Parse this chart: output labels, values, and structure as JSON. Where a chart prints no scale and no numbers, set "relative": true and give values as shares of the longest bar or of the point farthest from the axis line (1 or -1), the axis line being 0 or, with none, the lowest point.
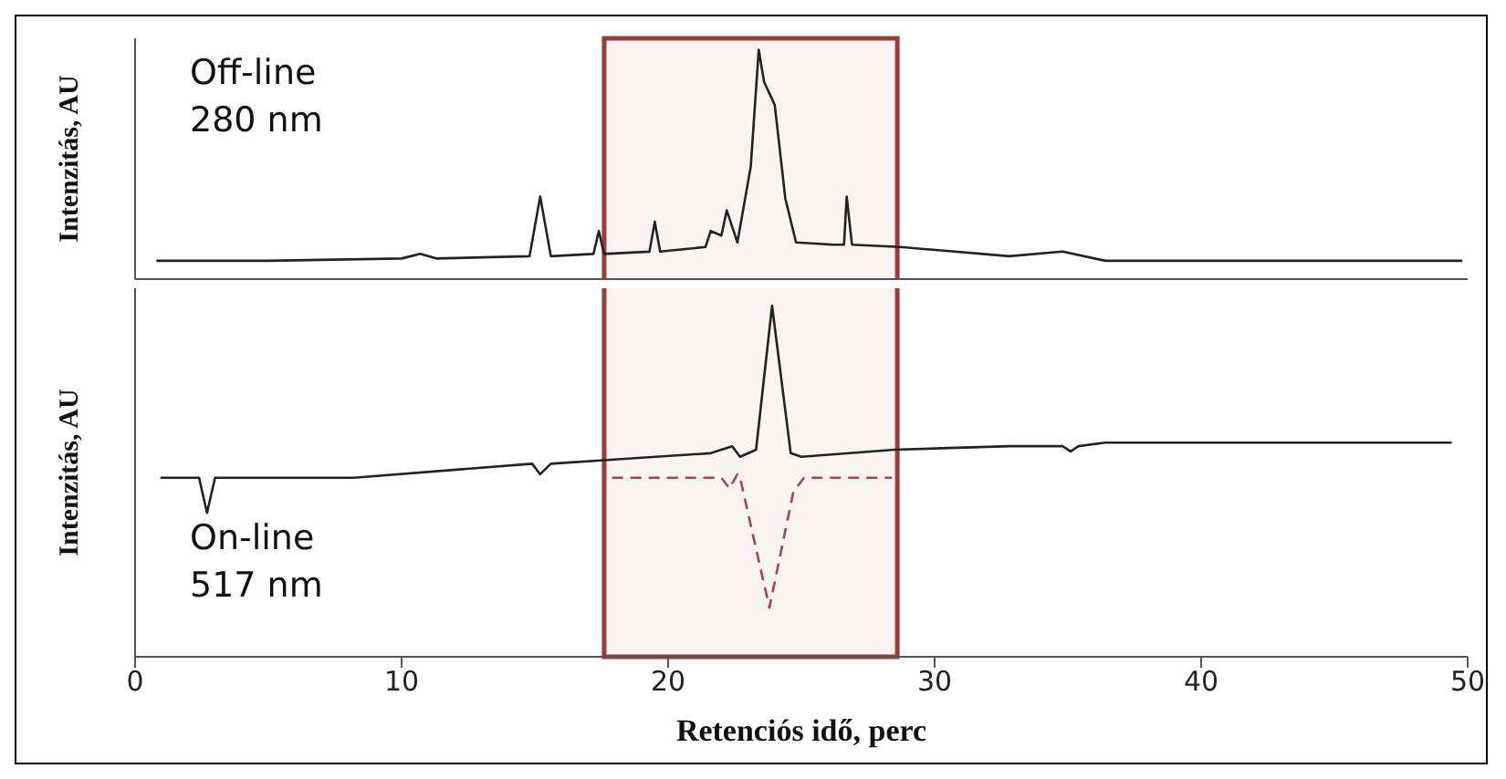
{
  "chart_data": [
    {
      "type": "line",
      "ylabel": "Intenzitás, AU",
      "annotations": [
        "Off-line\n280 nm"
      ],
      "relative": true,
      "xlim": [
        0,
        50
      ],
      "xticks": [
        0,
        10,
        20,
        30,
        40,
        50
      ],
      "tick_labels": false,
      "bands": [
        {
          "axis": "x",
          "from": 17.6,
          "to": 28.6,
          "color": "#9b3b3b"
        }
      ],
      "series": [
        {
          "color": "#222222",
          "line_style": "solid",
          "x": [
            0.8,
            5,
            10,
            10.7,
            11.3,
            14.8,
            15.2,
            15.6,
            17.2,
            17.4,
            17.6,
            19.3,
            19.5,
            19.7,
            21.4,
            21.6,
            22.0,
            22.2,
            22.6,
            23.1,
            23.4,
            23.6,
            24.0,
            24.4,
            24.8,
            26.2,
            26.6,
            26.7,
            26.9,
            28.7,
            32.8,
            34.8,
            36.4,
            42,
            49.8
          ],
          "values": [
            0.08,
            0.08,
            0.09,
            0.11,
            0.09,
            0.1,
            0.36,
            0.1,
            0.11,
            0.21,
            0.11,
            0.12,
            0.25,
            0.12,
            0.14,
            0.21,
            0.19,
            0.3,
            0.16,
            0.49,
            1.0,
            0.86,
            0.76,
            0.35,
            0.16,
            0.15,
            0.15,
            0.36,
            0.15,
            0.14,
            0.1,
            0.12,
            0.08,
            0.08,
            0.08
          ]
        }
      ]
    },
    {
      "type": "line",
      "xlabel": "Retenciós idő, perc",
      "ylabel": "Intenzitás, AU",
      "annotations": [
        "On-line\n517 nm"
      ],
      "relative": true,
      "xlim": [
        0,
        50
      ],
      "xticks": [
        0,
        10,
        20,
        30,
        40,
        50
      ],
      "tick_labels": "x",
      "bands": [
        {
          "axis": "x",
          "from": 17.6,
          "to": 28.6,
          "color": "#9b3b3b"
        }
      ],
      "series": [
        {
          "color": "#222222",
          "line_style": "solid",
          "x": [
            0.95,
            2.4,
            2.7,
            3.0,
            8.2,
            14.9,
            15.2,
            15.6,
            17.6,
            21.6,
            22.4,
            22.7,
            23.3,
            23.9,
            24.6,
            25.0,
            28.5,
            32.8,
            34.8,
            35.1,
            35.4,
            36.4,
            49.4
          ],
          "values": [
            0.51,
            0.51,
            0.41,
            0.51,
            0.51,
            0.55,
            0.52,
            0.55,
            0.56,
            0.58,
            0.6,
            0.57,
            0.59,
            1.0,
            0.58,
            0.57,
            0.59,
            0.6,
            0.6,
            0.585,
            0.6,
            0.61,
            0.61
          ]
        },
        {
          "color": "#a04848",
          "line_style": "dashed",
          "x": [
            17.9,
            22.0,
            22.3,
            22.6,
            22.7,
            23.8,
            24.7,
            25.1,
            28.4
          ],
          "values": [
            0.51,
            0.51,
            0.48,
            0.52,
            0.51,
            0.14,
            0.47,
            0.51,
            0.51
          ]
        }
      ]
    }
  ]
}
